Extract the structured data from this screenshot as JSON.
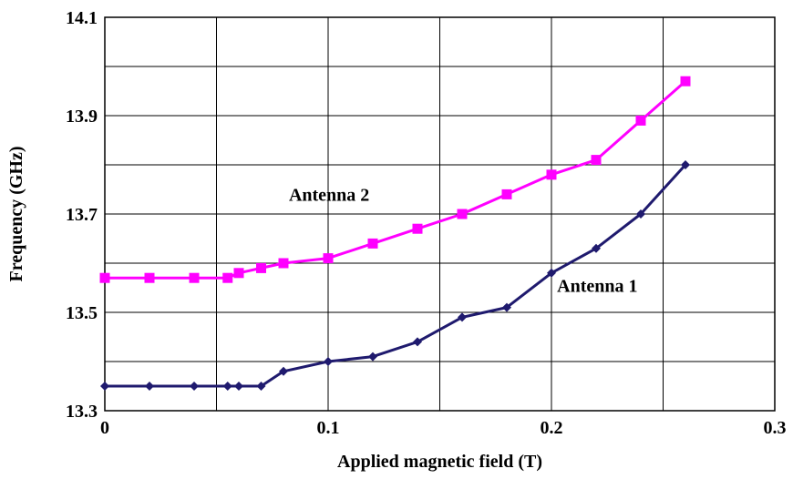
{
  "chart_data": {
    "type": "line",
    "title": "",
    "xlabel": "Applied magnetic field  (T)",
    "ylabel": "Frequency (GHz)",
    "xlim": [
      0,
      0.3
    ],
    "ylim": [
      13.3,
      14.1
    ],
    "x_ticks": [
      0,
      0.1,
      0.2,
      0.3
    ],
    "x_tick_labels": [
      "0",
      "0.1",
      "0.2",
      "0.3"
    ],
    "y_ticks": [
      13.3,
      13.5,
      13.7,
      13.9,
      14.1
    ],
    "y_tick_labels": [
      "13.3",
      "13.5",
      "13.7",
      "13.9",
      "14.1"
    ],
    "grid": {
      "x_step": 0.05,
      "y_step": 0.1,
      "on": true
    },
    "legend": "none",
    "series": [
      {
        "name": "Antenna 1",
        "color": "#1f1a6e",
        "marker": "diamond",
        "x": [
          0,
          0.02,
          0.04,
          0.055,
          0.06,
          0.07,
          0.08,
          0.1,
          0.12,
          0.14,
          0.16,
          0.18,
          0.2,
          0.22,
          0.24,
          0.26
        ],
        "y": [
          13.35,
          13.35,
          13.35,
          13.35,
          13.35,
          13.35,
          13.38,
          13.4,
          13.41,
          13.44,
          13.49,
          13.51,
          13.58,
          13.63,
          13.7,
          13.8
        ]
      },
      {
        "name": "Antenna 2",
        "color": "#ff00ff",
        "marker": "square",
        "x": [
          0,
          0.02,
          0.04,
          0.055,
          0.06,
          0.07,
          0.08,
          0.1,
          0.12,
          0.14,
          0.16,
          0.18,
          0.2,
          0.22,
          0.24,
          0.26
        ],
        "y": [
          13.57,
          13.57,
          13.57,
          13.57,
          13.58,
          13.59,
          13.6,
          13.61,
          13.64,
          13.67,
          13.7,
          13.74,
          13.78,
          13.81,
          13.89,
          13.97
        ]
      }
    ]
  }
}
